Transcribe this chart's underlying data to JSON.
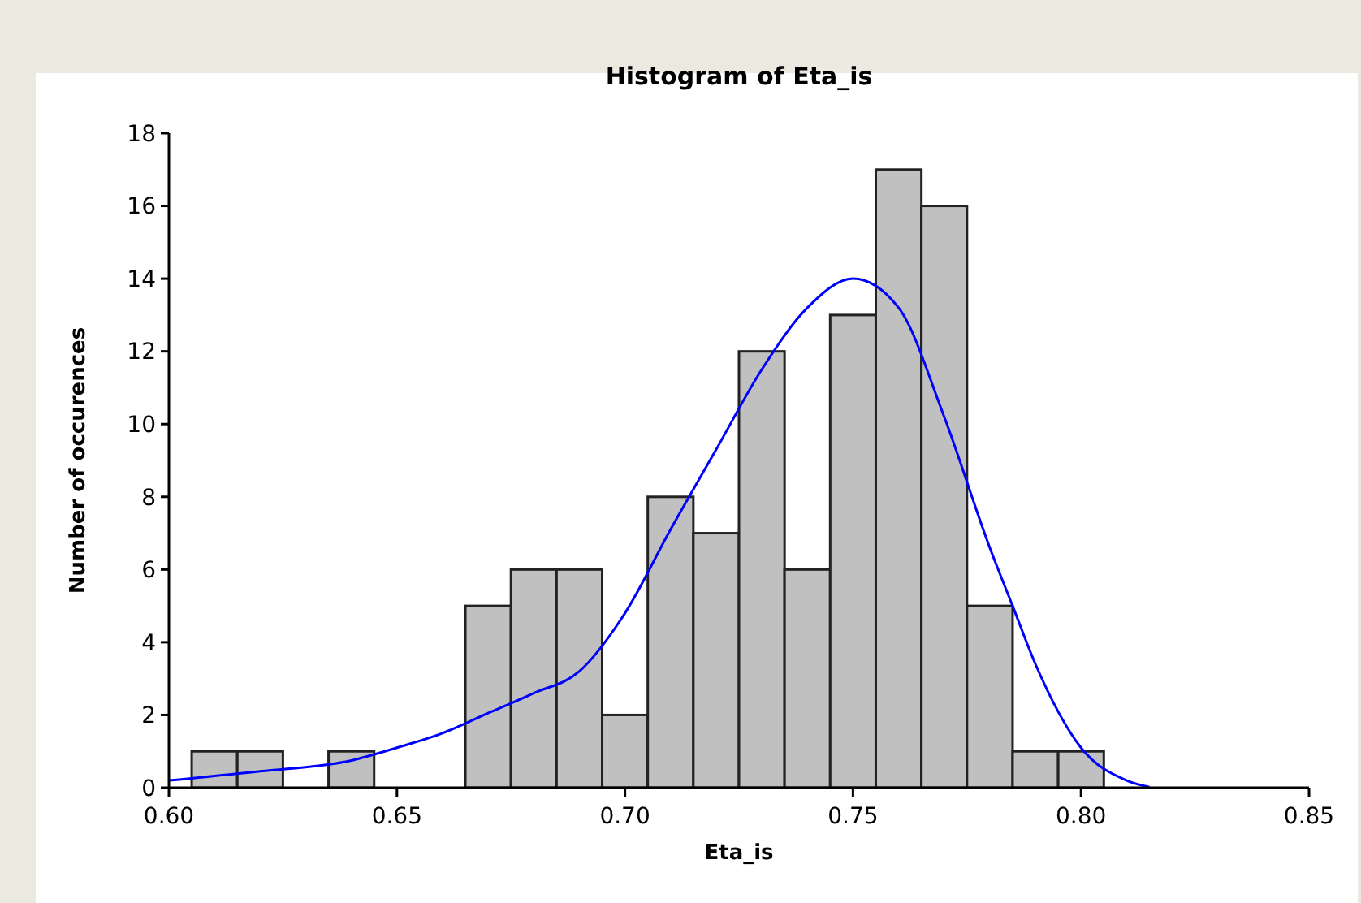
{
  "chart_data": {
    "type": "histogram",
    "title": "Histogram of Eta_is",
    "xlabel": "Eta_is",
    "ylabel": "Number of occurences",
    "bins": [
      0.605,
      0.615,
      0.625,
      0.635,
      0.645,
      0.655,
      0.665,
      0.675,
      0.685,
      0.695,
      0.705,
      0.715,
      0.725,
      0.735,
      0.745,
      0.755,
      0.765,
      0.775,
      0.785,
      0.795,
      0.805
    ],
    "values": [
      1,
      1,
      0,
      1,
      0,
      0,
      5,
      6,
      6,
      2,
      8,
      7,
      12,
      6,
      13,
      17,
      16,
      5,
      1,
      1
    ],
    "color": "#c0c0c0",
    "series": [
      {
        "type": "line",
        "color": "#0000ff",
        "x": [
          0.6,
          0.62,
          0.64,
          0.65,
          0.66,
          0.67,
          0.68,
          0.69,
          0.7,
          0.71,
          0.72,
          0.73,
          0.74,
          0.75,
          0.76,
          0.77,
          0.78,
          0.785,
          0.79,
          0.8,
          0.81,
          0.815
        ],
        "values": [
          0.2,
          0.45,
          0.75,
          1.1,
          1.5,
          2.05,
          2.6,
          3.2,
          4.8,
          7.1,
          9.3,
          11.5,
          13.2,
          14,
          13.2,
          10.2,
          6.6,
          5,
          3.4,
          1.1,
          0.2,
          0.02
        ]
      }
    ],
    "xlim": [
      0.6,
      0.85
    ],
    "xticks": [
      {
        "value": 0.6,
        "label": "0.60"
      },
      {
        "value": 0.65,
        "label": "0.65"
      },
      {
        "value": 0.7,
        "label": "0.70"
      },
      {
        "value": 0.75,
        "label": "0.75"
      },
      {
        "value": 0.8,
        "label": "0.80"
      },
      {
        "value": 0.85,
        "label": "0.85"
      }
    ],
    "ylim": [
      0,
      18
    ],
    "yticks": [
      0,
      2,
      4,
      6,
      8,
      10,
      12,
      14,
      16,
      18
    ]
  }
}
